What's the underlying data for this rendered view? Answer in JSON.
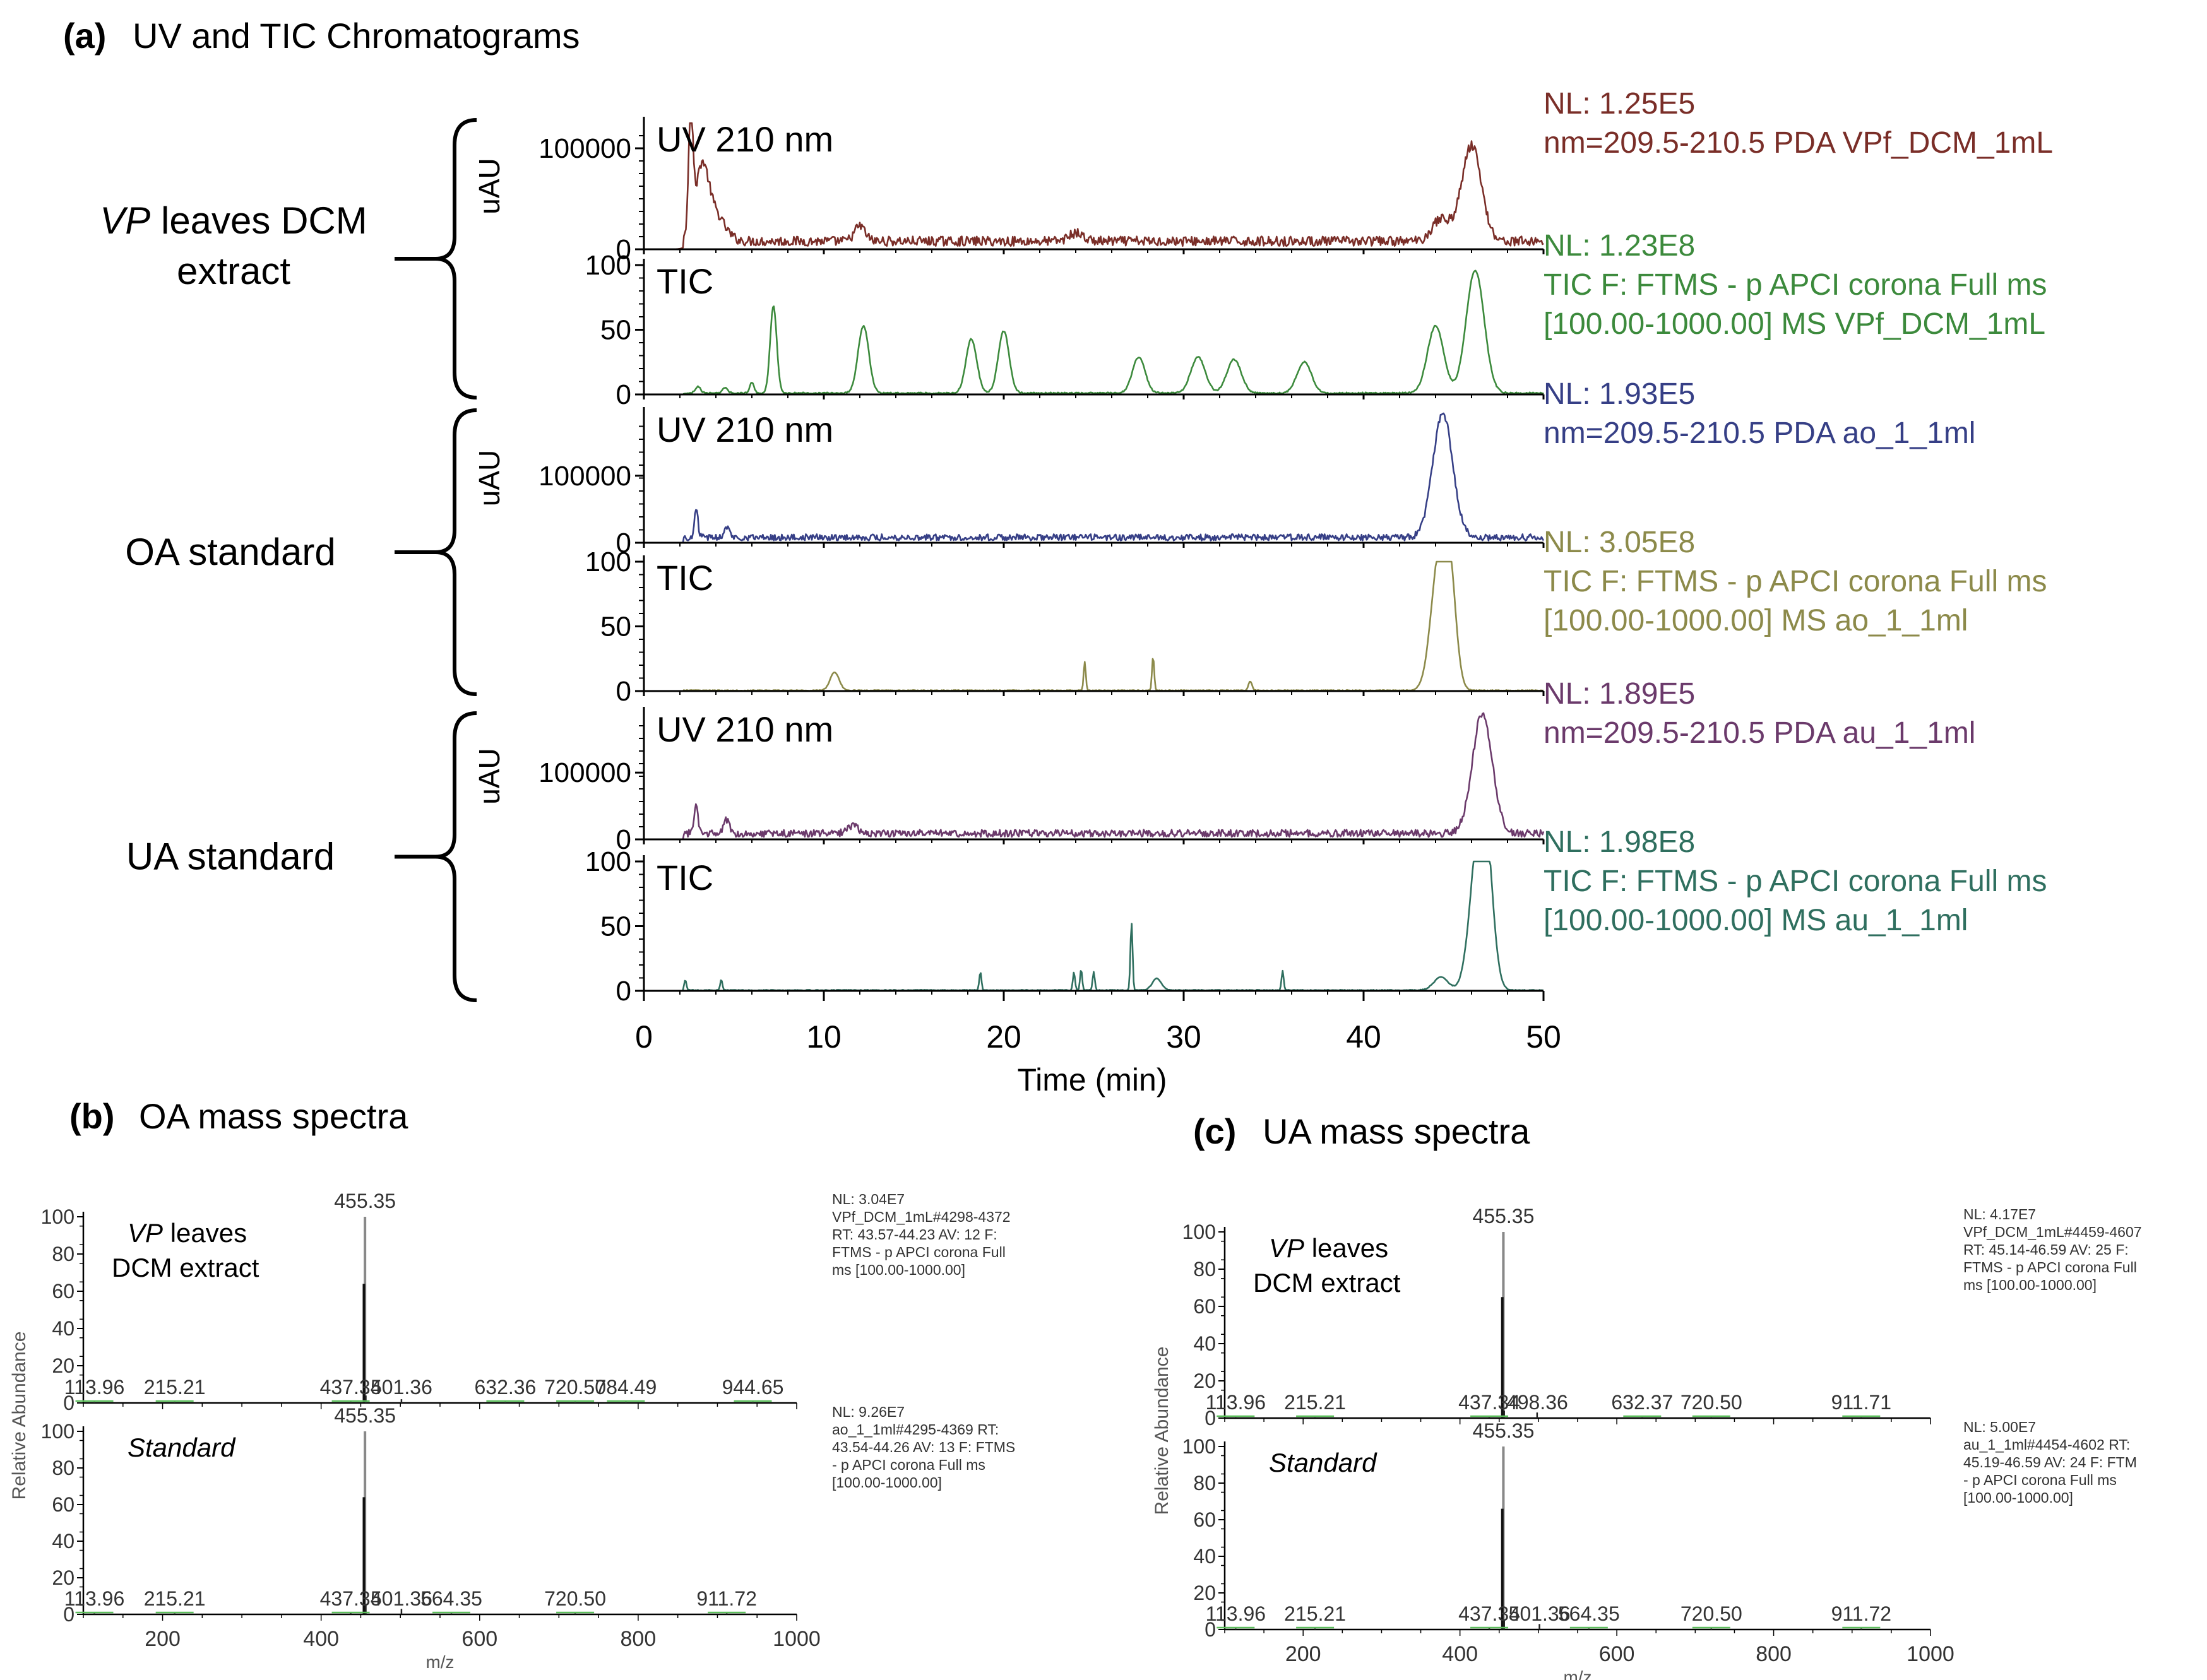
{
  "panel_a": {
    "letter": "(a)",
    "title": "UV and TIC Chromatograms",
    "groups": [
      {
        "label_italic": "VP",
        "label_line1": " leaves DCM",
        "label_line2": "extract"
      },
      {
        "label_italic": "",
        "label_line1": "OA standard",
        "label_line2": ""
      },
      {
        "label_italic": "",
        "label_line1": "UA standard",
        "label_line2": ""
      }
    ],
    "traces": [
      {
        "tag": "UV 210 nm",
        "yaxis_label": "uAU",
        "color": "#7a2e28",
        "info": [
          "NL: 1.25E5",
          "nm=209.5-210.5  PDA VPf_DCM_1mL"
        ]
      },
      {
        "tag": "TIC",
        "yaxis_label": "",
        "color": "#3c8a3c",
        "info": [
          "NL: 1.23E8",
          "TIC F: FTMS - p APCI corona Full ms",
          "[100.00-1000.00]  MS VPf_DCM_1mL"
        ]
      },
      {
        "tag": "UV 210 nm",
        "yaxis_label": "uAU",
        "color": "#363f86",
        "info": [
          "NL: 1.93E5",
          "nm=209.5-210.5  PDA ao_1_1ml"
        ]
      },
      {
        "tag": "TIC",
        "yaxis_label": "",
        "color": "#8c8a4a",
        "info": [
          "NL: 3.05E8",
          "TIC F: FTMS - p APCI corona Full ms",
          "[100.00-1000.00]  MS ao_1_1ml"
        ]
      },
      {
        "tag": "UV 210 nm",
        "yaxis_label": "uAU",
        "color": "#6b3a6b",
        "info": [
          "NL: 1.89E5",
          "nm=209.5-210.5  PDA au_1_1ml"
        ]
      },
      {
        "tag": "TIC",
        "yaxis_label": "",
        "color": "#2f6f5f",
        "info": [
          "NL: 1.98E8",
          "TIC F: FTMS - p APCI corona Full ms",
          "[100.00-1000.00]  MS au_1_1ml"
        ]
      }
    ],
    "xaxis_title": "Time (min)"
  },
  "panel_b": {
    "letter": "(b)",
    "title": "OA mass spectra"
  },
  "panel_c": {
    "letter": "(c)",
    "title": "UA mass spectra"
  },
  "chart_data": [
    {
      "type": "line",
      "id": "chrom_vp_uv",
      "title": "UV 210 nm",
      "xlabel": "Time (min)",
      "ylabel": "uAU",
      "xlim": [
        0,
        50
      ],
      "ylim": [
        0,
        125000
      ],
      "xticks": [
        0,
        10,
        20,
        30,
        40,
        50
      ],
      "yticks": [
        0,
        100000
      ],
      "ytick_labels": [
        "0",
        "100000"
      ],
      "baseline": 8000,
      "peaks": [
        [
          2.6,
          125000,
          0.12
        ],
        [
          3.2,
          60000,
          0.35
        ],
        [
          3.8,
          30000,
          0.6
        ],
        [
          12.0,
          15000,
          0.3
        ],
        [
          24.0,
          8000,
          0.4
        ],
        [
          44.3,
          22000,
          0.5
        ],
        [
          46.0,
          95000,
          0.55
        ]
      ]
    },
    {
      "type": "line",
      "id": "chrom_vp_tic",
      "title": "TIC",
      "xlabel": "Time (min)",
      "ylabel": "",
      "xlim": [
        0,
        50
      ],
      "ylim": [
        0,
        100
      ],
      "xticks": [
        0,
        10,
        20,
        30,
        40,
        50
      ],
      "yticks": [
        0,
        50,
        100
      ],
      "baseline": 1,
      "peaks": [
        [
          3.0,
          5,
          0.15
        ],
        [
          4.5,
          4,
          0.15
        ],
        [
          6.0,
          8,
          0.12
        ],
        [
          7.2,
          68,
          0.18
        ],
        [
          12.2,
          52,
          0.3
        ],
        [
          18.2,
          42,
          0.3
        ],
        [
          20.0,
          48,
          0.3
        ],
        [
          27.5,
          28,
          0.35
        ],
        [
          30.8,
          28,
          0.4
        ],
        [
          32.8,
          26,
          0.4
        ],
        [
          36.7,
          24,
          0.4
        ],
        [
          44.0,
          52,
          0.45
        ],
        [
          46.2,
          95,
          0.5
        ]
      ]
    },
    {
      "type": "line",
      "id": "chrom_oa_uv",
      "title": "UV 210 nm",
      "xlabel": "Time (min)",
      "ylabel": "uAU",
      "xlim": [
        0,
        50
      ],
      "ylim": [
        0,
        193000
      ],
      "xticks": [
        0,
        10,
        20,
        30,
        40,
        50
      ],
      "yticks": [
        0,
        100000
      ],
      "ytick_labels": [
        "0",
        "100000"
      ],
      "baseline": 8000,
      "peaks": [
        [
          2.9,
          45000,
          0.1
        ],
        [
          4.6,
          15000,
          0.15
        ],
        [
          44.4,
          185000,
          0.55
        ]
      ]
    },
    {
      "type": "line",
      "id": "chrom_oa_tic",
      "title": "TIC",
      "xlabel": "Time (min)",
      "ylabel": "",
      "xlim": [
        0,
        50
      ],
      "ylim": [
        0,
        100
      ],
      "xticks": [
        0,
        10,
        20,
        30,
        40,
        50
      ],
      "yticks": [
        0,
        50,
        100
      ],
      "baseline": 0.5,
      "peaks": [
        [
          10.6,
          14,
          0.25
        ],
        [
          24.5,
          22,
          0.06
        ],
        [
          28.3,
          26,
          0.06
        ],
        [
          33.7,
          7,
          0.1
        ],
        [
          44.2,
          100,
          0.45
        ],
        [
          44.8,
          72,
          0.35
        ]
      ]
    },
    {
      "type": "line",
      "id": "chrom_ua_uv",
      "title": "UV 210 nm",
      "xlabel": "Time (min)",
      "ylabel": "uAU",
      "xlim": [
        0,
        50
      ],
      "ylim": [
        0,
        189000
      ],
      "xticks": [
        0,
        10,
        20,
        30,
        40,
        50
      ],
      "yticks": [
        0,
        100000
      ],
      "ytick_labels": [
        "0",
        "100000"
      ],
      "baseline": 9000,
      "peaks": [
        [
          2.9,
          40000,
          0.1
        ],
        [
          4.6,
          20000,
          0.15
        ],
        [
          11.6,
          12000,
          0.3
        ],
        [
          46.6,
          180000,
          0.55
        ]
      ]
    },
    {
      "type": "line",
      "id": "chrom_ua_tic",
      "title": "TIC",
      "xlabel": "Time (min)",
      "ylabel": "",
      "xlim": [
        0,
        50
      ],
      "ylim": [
        0,
        100
      ],
      "xticks": [
        0,
        10,
        20,
        30,
        40,
        50
      ],
      "yticks": [
        0,
        50,
        100
      ],
      "baseline": 0.5,
      "peaks": [
        [
          2.3,
          8,
          0.06
        ],
        [
          4.3,
          8,
          0.06
        ],
        [
          18.7,
          14,
          0.06
        ],
        [
          23.9,
          14,
          0.06
        ],
        [
          24.3,
          16,
          0.06
        ],
        [
          25.0,
          14,
          0.06
        ],
        [
          27.1,
          52,
          0.06
        ],
        [
          28.5,
          9,
          0.25
        ],
        [
          35.5,
          15,
          0.06
        ],
        [
          44.3,
          10,
          0.4
        ],
        [
          46.3,
          88,
          0.45
        ],
        [
          46.8,
          92,
          0.4
        ]
      ]
    },
    {
      "type": "bar",
      "id": "ms_oa_vp",
      "title_italic": "VP",
      "title_rest": " leaves",
      "title_line2": "DCM extract",
      "xlabel": "m/z",
      "ylabel": "Relative Abundance",
      "xlim": [
        100,
        1000
      ],
      "ylim": [
        0,
        100
      ],
      "xticks": [
        200,
        400,
        600,
        800,
        1000
      ],
      "yticks": [
        0,
        20,
        40,
        60,
        80,
        100
      ],
      "peaks": [
        {
          "mz": 455.35,
          "ab": 100,
          "label": "455.35"
        },
        {
          "mz": 454.0,
          "ab": 64,
          "label": ""
        },
        {
          "mz": 456.4,
          "ab": 4,
          "label": ""
        },
        {
          "mz": 501.36,
          "ab": 2,
          "label": "501.36"
        },
        {
          "mz": 113.96,
          "ab": 0.5,
          "label": "113.96"
        },
        {
          "mz": 215.21,
          "ab": 0.5,
          "label": "215.21"
        },
        {
          "mz": 437.34,
          "ab": 0.8,
          "label": "437.34"
        },
        {
          "mz": 632.36,
          "ab": 0.4,
          "label": "632.36"
        },
        {
          "mz": 720.5,
          "ab": 0.4,
          "label": "720.50"
        },
        {
          "mz": 784.49,
          "ab": 0.4,
          "label": "784.49"
        },
        {
          "mz": 944.65,
          "ab": 0.4,
          "label": "944.65"
        }
      ],
      "info": [
        "NL: 3.04E7",
        "VPf_DCM_1mL#4298-4372",
        "RT: 43.57-44.23  AV: 12 F:",
        "FTMS - p APCI corona Full",
        "ms [100.00-1000.00]"
      ]
    },
    {
      "type": "bar",
      "id": "ms_oa_std",
      "title_italic": "Standard",
      "title_rest": "",
      "title_line2": "",
      "xlabel": "m/z",
      "ylabel": "Relative Abundance",
      "xlim": [
        100,
        1000
      ],
      "ylim": [
        0,
        100
      ],
      "xticks": [
        200,
        400,
        600,
        800,
        1000
      ],
      "yticks": [
        0,
        20,
        40,
        60,
        80,
        100
      ],
      "peaks": [
        {
          "mz": 455.35,
          "ab": 100,
          "label": "455.35"
        },
        {
          "mz": 454.0,
          "ab": 64,
          "label": ""
        },
        {
          "mz": 456.4,
          "ab": 5,
          "label": ""
        },
        {
          "mz": 501.36,
          "ab": 3,
          "label": "501.36"
        },
        {
          "mz": 113.96,
          "ab": 0.5,
          "label": "113.96"
        },
        {
          "mz": 215.21,
          "ab": 0.5,
          "label": "215.21"
        },
        {
          "mz": 437.34,
          "ab": 0.8,
          "label": "437.34"
        },
        {
          "mz": 564.35,
          "ab": 0.4,
          "label": "564.35"
        },
        {
          "mz": 720.5,
          "ab": 0.4,
          "label": "720.50"
        },
        {
          "mz": 911.72,
          "ab": 0.4,
          "label": "911.72"
        }
      ],
      "info": [
        "NL: 9.26E7",
        "ao_1_1ml#4295-4369  RT:",
        "43.54-44.26  AV: 13 F: FTMS",
        "- p APCI corona Full ms",
        "[100.00-1000.00]"
      ]
    },
    {
      "type": "bar",
      "id": "ms_ua_vp",
      "title_italic": "VP",
      "title_rest": " leaves",
      "title_line2": "DCM extract",
      "xlabel": "m/z",
      "ylabel": "Relative Abundance",
      "xlim": [
        100,
        1000
      ],
      "ylim": [
        0,
        100
      ],
      "xticks": [
        200,
        400,
        600,
        800,
        1000
      ],
      "yticks": [
        0,
        20,
        40,
        60,
        80,
        100
      ],
      "peaks": [
        {
          "mz": 455.35,
          "ab": 100,
          "label": "455.35"
        },
        {
          "mz": 454.0,
          "ab": 65,
          "label": ""
        },
        {
          "mz": 456.4,
          "ab": 4,
          "label": ""
        },
        {
          "mz": 498.36,
          "ab": 3,
          "label": "498.36"
        },
        {
          "mz": 113.96,
          "ab": 0.5,
          "label": "113.96"
        },
        {
          "mz": 215.21,
          "ab": 0.5,
          "label": "215.21"
        },
        {
          "mz": 437.34,
          "ab": 0.8,
          "label": "437.34"
        },
        {
          "mz": 632.37,
          "ab": 0.4,
          "label": "632.37"
        },
        {
          "mz": 720.5,
          "ab": 0.4,
          "label": "720.50"
        },
        {
          "mz": 911.71,
          "ab": 0.4,
          "label": "911.71"
        }
      ],
      "info": [
        "NL: 4.17E7",
        "VPf_DCM_1mL#4459-4607",
        "RT: 45.14-46.59  AV: 25 F:",
        "FTMS - p APCI corona Full",
        "ms [100.00-1000.00]"
      ]
    },
    {
      "type": "bar",
      "id": "ms_ua_std",
      "title_italic": "Standard",
      "title_rest": "",
      "title_line2": "",
      "xlabel": "m/z",
      "ylabel": "Relative Abundance",
      "xlim": [
        100,
        1000
      ],
      "ylim": [
        0,
        100
      ],
      "xticks": [
        200,
        400,
        600,
        800,
        1000
      ],
      "yticks": [
        0,
        20,
        40,
        60,
        80,
        100
      ],
      "peaks": [
        {
          "mz": 455.35,
          "ab": 100,
          "label": "455.35"
        },
        {
          "mz": 454.0,
          "ab": 66,
          "label": ""
        },
        {
          "mz": 456.4,
          "ab": 5,
          "label": ""
        },
        {
          "mz": 501.36,
          "ab": 3,
          "label": "501.36"
        },
        {
          "mz": 113.96,
          "ab": 0.5,
          "label": "113.96"
        },
        {
          "mz": 215.21,
          "ab": 0.5,
          "label": "215.21"
        },
        {
          "mz": 437.34,
          "ab": 0.8,
          "label": "437.34"
        },
        {
          "mz": 564.35,
          "ab": 0.4,
          "label": "564.35"
        },
        {
          "mz": 720.5,
          "ab": 0.4,
          "label": "720.50"
        },
        {
          "mz": 911.72,
          "ab": 0.4,
          "label": "911.72"
        }
      ],
      "info": [
        "NL: 5.00E7",
        "au_1_1ml#4454-4602  RT:",
        "45.19-46.59  AV: 24 F: FTM",
        "- p APCI corona Full ms",
        "[100.00-1000.00]"
      ]
    }
  ]
}
